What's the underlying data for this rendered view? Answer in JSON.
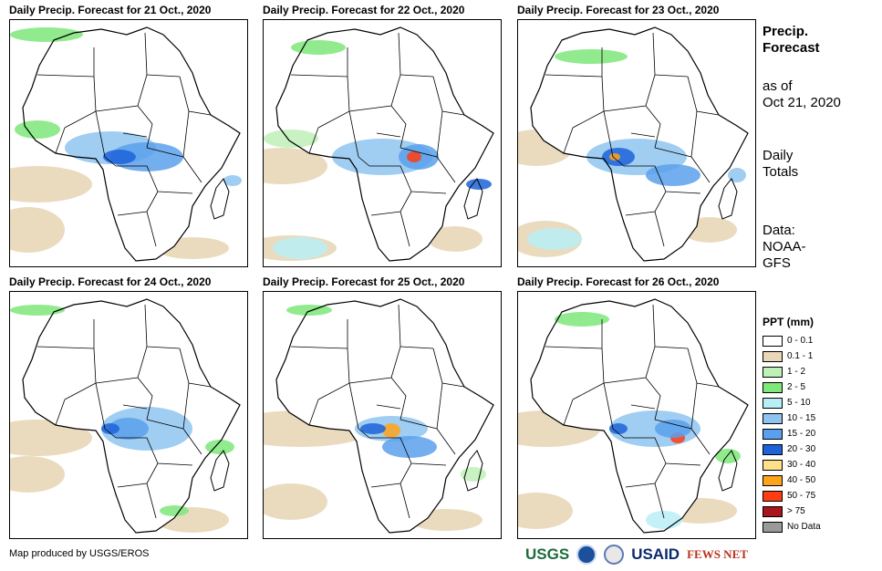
{
  "panels": [
    {
      "title": "Daily Precip. Forecast for 21 Oct., 2020"
    },
    {
      "title": "Daily Precip. Forecast for 22 Oct., 2020"
    },
    {
      "title": "Daily Precip. Forecast for 23 Oct., 2020"
    },
    {
      "title": "Daily Precip. Forecast for 24 Oct., 2020"
    },
    {
      "title": "Daily Precip. Forecast for 25 Oct., 2020"
    },
    {
      "title": "Daily Precip. Forecast for 26 Oct., 2020"
    }
  ],
  "sidebar": {
    "heading_line1": "Precip.",
    "heading_line2": "Forecast",
    "asof_line1": "as of",
    "asof_line2": "Oct 21, 2020",
    "totals_line1": "Daily",
    "totals_line2": "Totals",
    "data_line1": "Data:",
    "data_line2": "NOAA-",
    "data_line3": "GFS"
  },
  "legend": {
    "title": "PPT (mm)",
    "items": [
      {
        "label": "0 - 0.1",
        "color": "#ffffff"
      },
      {
        "label": "0.1 - 1",
        "color": "#e8d7b8"
      },
      {
        "label": "1 - 2",
        "color": "#bff0b8"
      },
      {
        "label": "2 - 5",
        "color": "#7ee87a"
      },
      {
        "label": "5 - 10",
        "color": "#b8eef6"
      },
      {
        "label": "10 - 15",
        "color": "#8fc4f0"
      },
      {
        "label": "15 - 20",
        "color": "#5aa0ec"
      },
      {
        "label": "20 - 30",
        "color": "#1d63d8"
      },
      {
        "label": "30 - 40",
        "color": "#ffe08a"
      },
      {
        "label": "40 - 50",
        "color": "#ffa31a"
      },
      {
        "label": "50 - 75",
        "color": "#ff3c12"
      },
      {
        "label": "> 75",
        "color": "#a8161c"
      },
      {
        "label": "No Data",
        "color": "#9a9a9a"
      }
    ]
  },
  "footer": {
    "credit": "Map produced by USGS/EROS",
    "logo_usgs": "USGS",
    "logo_usaid": "USAID",
    "logo_fews": "FEWS NET"
  }
}
